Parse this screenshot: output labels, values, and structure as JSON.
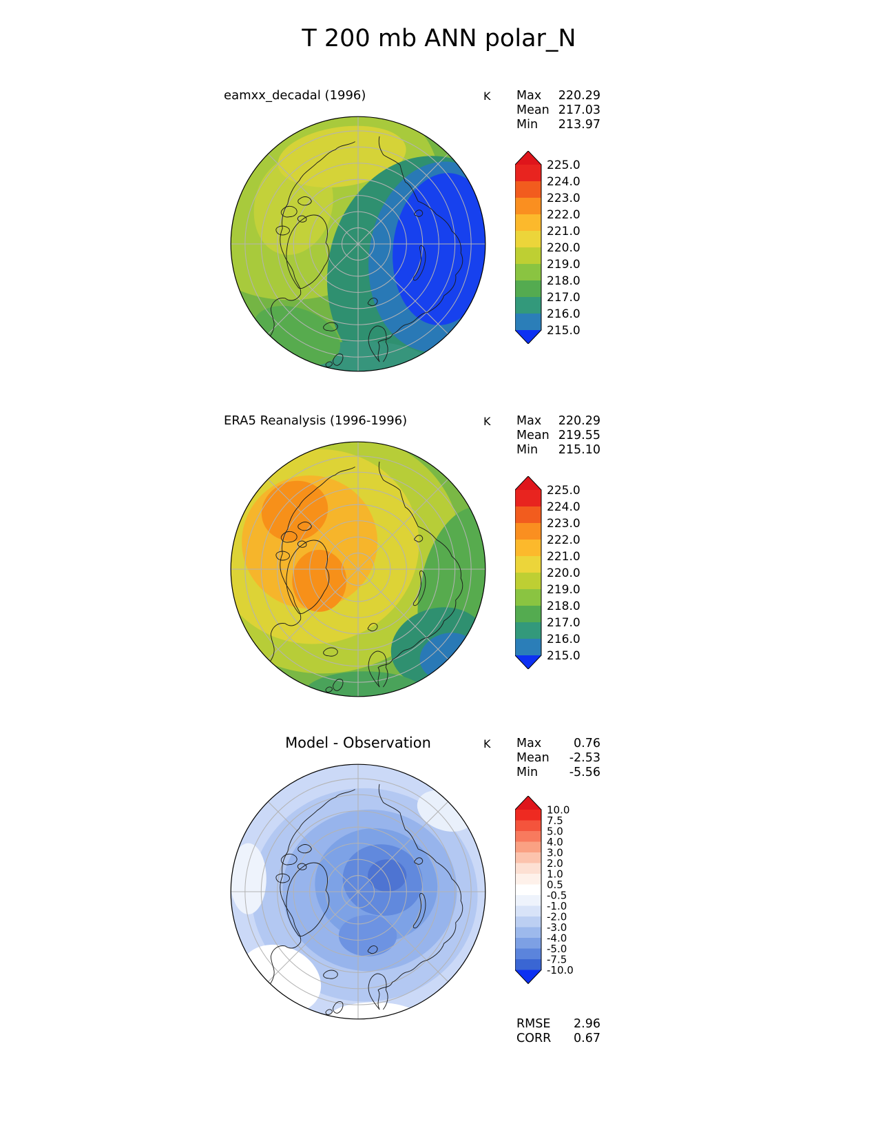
{
  "title": "T 200 mb ANN polar_N",
  "panels": [
    {
      "label": "eamxx_decadal (1996)",
      "units": "K",
      "stats": [
        {
          "name": "Max",
          "value": "220.29"
        },
        {
          "name": "Mean",
          "value": "217.03"
        },
        {
          "name": "Min",
          "value": "213.97"
        }
      ],
      "colorbar": {
        "labels": [
          "225.0",
          "224.0",
          "223.0",
          "222.0",
          "221.0",
          "220.0",
          "219.0",
          "218.0",
          "217.0",
          "216.0",
          "215.0"
        ],
        "colors": [
          "#e8241f",
          "#f25c1e",
          "#fa8f20",
          "#fcb92c",
          "#ecd53a",
          "#becf33",
          "#8ac441",
          "#54ab50",
          "#33997b",
          "#2b7eb8"
        ],
        "arrow_top": "#df151b",
        "arrow_bottom": "#0d31f2"
      }
    },
    {
      "label": "ERA5 Reanalysis (1996-1996)",
      "units": "K",
      "stats": [
        {
          "name": "Max",
          "value": "220.29"
        },
        {
          "name": "Mean",
          "value": "219.55"
        },
        {
          "name": "Min",
          "value": "215.10"
        }
      ],
      "colorbar": {
        "labels": [
          "225.0",
          "224.0",
          "223.0",
          "222.0",
          "221.0",
          "220.0",
          "219.0",
          "218.0",
          "217.0",
          "216.0",
          "215.0"
        ],
        "colors": [
          "#e8241f",
          "#f25c1e",
          "#fa8f20",
          "#fcb92c",
          "#ecd53a",
          "#becf33",
          "#8ac441",
          "#54ab50",
          "#33997b",
          "#2b7eb8"
        ],
        "arrow_top": "#df151b",
        "arrow_bottom": "#0d31f2"
      }
    },
    {
      "label": "Model - Observation",
      "units": "K",
      "stats": [
        {
          "name": "Max",
          "value": "0.76"
        },
        {
          "name": "Mean",
          "value": "-2.53"
        },
        {
          "name": "Min",
          "value": "-5.56"
        }
      ],
      "extra_stats": [
        {
          "name": "RMSE",
          "value": "2.96"
        },
        {
          "name": "CORR",
          "value": "0.67"
        }
      ],
      "colorbar": {
        "labels": [
          "10.0",
          "7.5",
          "5.0",
          "4.0",
          "3.0",
          "2.0",
          "1.0",
          "0.5",
          "-0.5",
          "-1.0",
          "-2.0",
          "-3.0",
          "-4.0",
          "-5.0",
          "-7.5",
          "-10.0"
        ],
        "colors": [
          "#ee2a21",
          "#f4543c",
          "#f87a5e",
          "#faa183",
          "#fcc3ad",
          "#fde0d3",
          "#fef1ea",
          "#ffffff",
          "#eef3fc",
          "#d8e3f8",
          "#bccff2",
          "#9db9ec",
          "#7da0e4",
          "#5b84dc",
          "#3a66d3"
        ],
        "arrow_top": "#df151b",
        "arrow_bottom": "#0d31f2"
      }
    }
  ],
  "chart_data": [
    {
      "type": "heatmap",
      "subtype": "polar_filled_contour_map",
      "title": "eamxx_decadal (1996)",
      "units": "K",
      "projection": "polar_N",
      "variable": "T 200 mb ANN",
      "stats": {
        "max": 220.29,
        "mean": 217.03,
        "min": 213.97
      },
      "contour_levels": [
        215,
        216,
        217,
        218,
        219,
        220,
        221,
        222,
        223,
        224,
        225
      ],
      "colorbar_extend": "both",
      "legend_position": "right"
    },
    {
      "type": "heatmap",
      "subtype": "polar_filled_contour_map",
      "title": "ERA5 Reanalysis (1996-1996)",
      "units": "K",
      "projection": "polar_N",
      "variable": "T 200 mb ANN",
      "stats": {
        "max": 220.29,
        "mean": 219.55,
        "min": 215.1
      },
      "contour_levels": [
        215,
        216,
        217,
        218,
        219,
        220,
        221,
        222,
        223,
        224,
        225
      ],
      "colorbar_extend": "both",
      "legend_position": "right"
    },
    {
      "type": "heatmap",
      "subtype": "polar_filled_contour_map",
      "title": "Model - Observation",
      "units": "K",
      "projection": "polar_N",
      "variable": "T 200 mb ANN difference",
      "stats": {
        "max": 0.76,
        "mean": -2.53,
        "min": -5.56,
        "rmse": 2.96,
        "corr": 0.67
      },
      "contour_levels": [
        -10,
        -7.5,
        -5,
        -4,
        -3,
        -2,
        -1,
        -0.5,
        0.5,
        1,
        2,
        3,
        4,
        5,
        7.5,
        10
      ],
      "colorbar_extend": "both",
      "legend_position": "right"
    }
  ]
}
